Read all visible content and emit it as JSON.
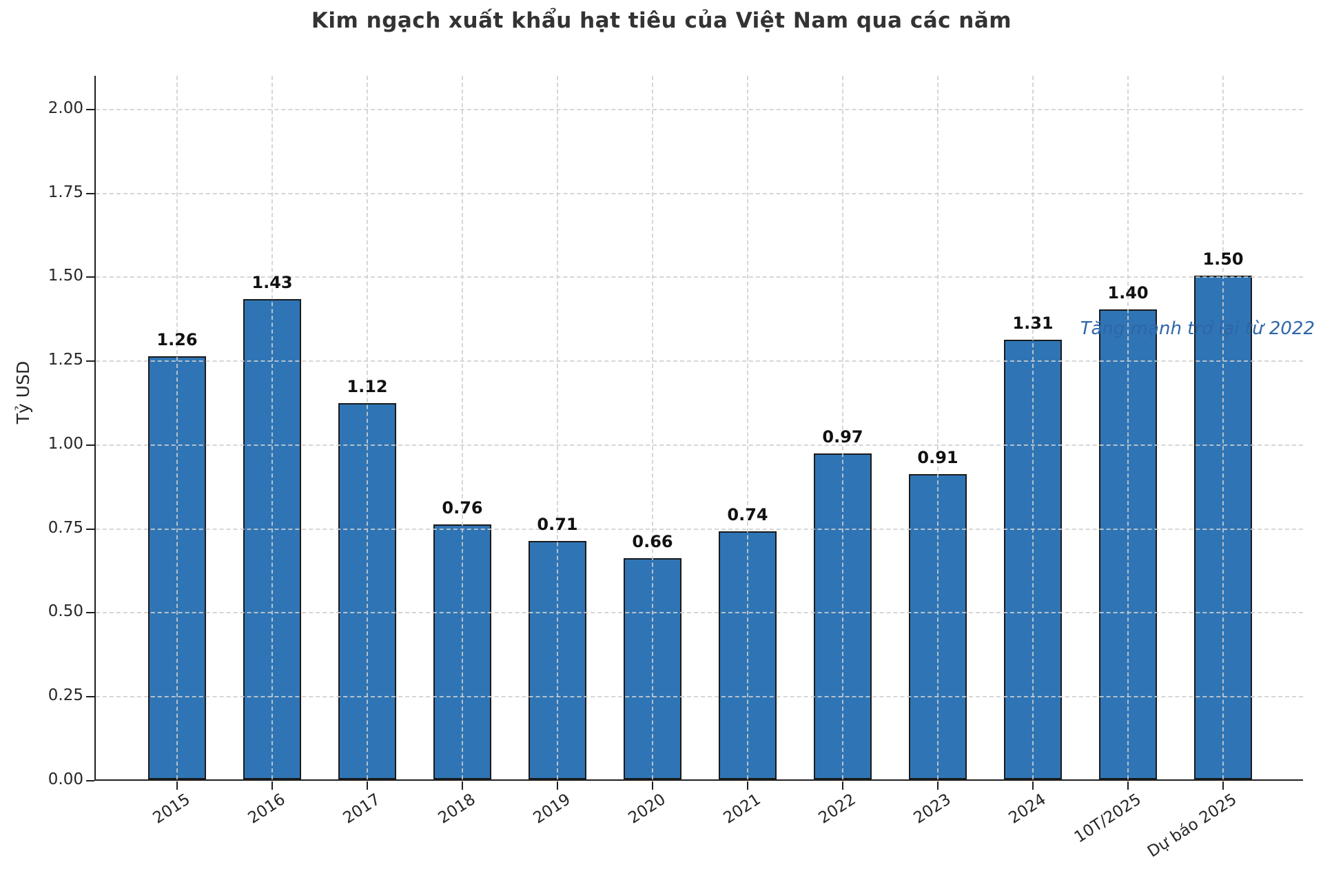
{
  "chart_data": {
    "type": "bar",
    "title": "Kim ngạch xuất khẩu hạt tiêu của Việt Nam qua các năm",
    "ylabel": "Tỷ USD",
    "categories": [
      "2015",
      "2016",
      "2017",
      "2018",
      "2019",
      "2020",
      "2021",
      "2022",
      "2023",
      "2024",
      "10T/2025",
      "Dự báo 2025"
    ],
    "values": [
      1.26,
      1.43,
      1.12,
      0.76,
      0.71,
      0.66,
      0.74,
      0.97,
      0.91,
      1.31,
      1.4,
      1.5
    ],
    "value_labels": [
      "1.26",
      "1.43",
      "1.12",
      "0.76",
      "0.71",
      "0.66",
      "0.74",
      "0.97",
      "0.91",
      "1.31",
      "1.40",
      "1.50"
    ],
    "ylim": [
      0,
      2.1
    ],
    "ytick_step": 0.25,
    "yticks": [
      "0.00",
      "0.25",
      "0.50",
      "0.75",
      "1.00",
      "1.25",
      "1.50",
      "1.75",
      "2.00"
    ],
    "grid": "dashed, both axes, drawn over bars",
    "legend": "none",
    "annotation": {
      "text": "Tăng mạnh trở lại từ 2022",
      "color": "#2E66A8"
    },
    "colors": {
      "bar_fill": "#2F75B5",
      "bar_edge": "#1a1a1a",
      "grid": "#cfcfcf",
      "spine": "#1f1f1f",
      "title_text": "#333333",
      "tick_text": "#262626",
      "value_label_text": "#111111"
    }
  }
}
